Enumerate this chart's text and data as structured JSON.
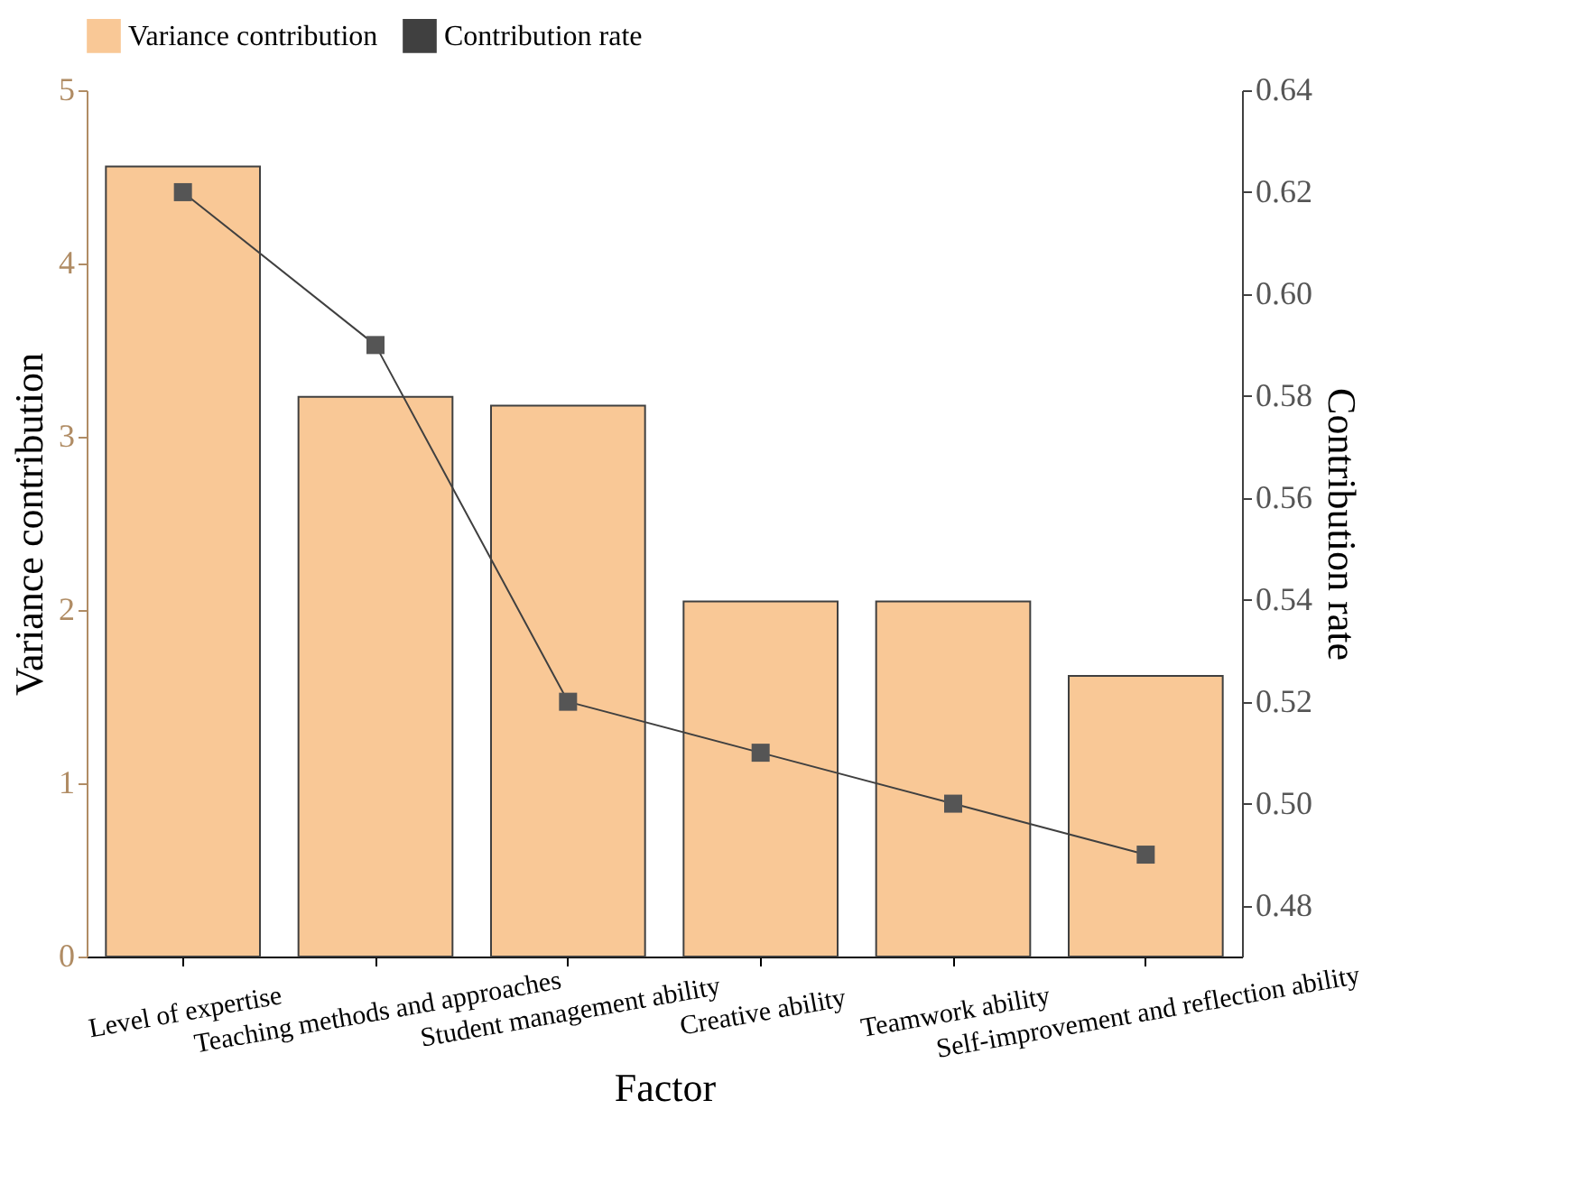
{
  "chart_data": {
    "type": "bar",
    "xlabel": "Factor",
    "ylabel": "Variance contribution",
    "y2label": "Contribution rate",
    "categories": [
      "Level of expertise",
      "Teaching methods and approaches",
      "Student management ability",
      "Creative ability",
      "Teamwork ability",
      "Self-improvement and reflection ability"
    ],
    "ylim": [
      0,
      5
    ],
    "yticks": [
      0,
      1,
      2,
      3,
      4,
      5
    ],
    "y2lim": [
      0.47,
      0.64
    ],
    "y2ticks": [
      0.48,
      {
        "value": 0.5,
        "label": "0.50"
      },
      0.52,
      0.54,
      0.56,
      0.58,
      {
        "value": 0.6,
        "label": "0.60"
      },
      0.62,
      0.64
    ],
    "legend": "top",
    "marker": "square",
    "grid": false,
    "series": [
      {
        "name": "Variance contribution",
        "type": "bar",
        "color": "#f9c896",
        "values": [
          4.56,
          3.23,
          3.18,
          2.05,
          2.05,
          1.62
        ]
      },
      {
        "name": "Contribution rate",
        "type": "line",
        "axis": "y2",
        "color": "#404040",
        "values": [
          0.62,
          0.59,
          0.52,
          0.51,
          0.5,
          0.49
        ]
      }
    ]
  }
}
